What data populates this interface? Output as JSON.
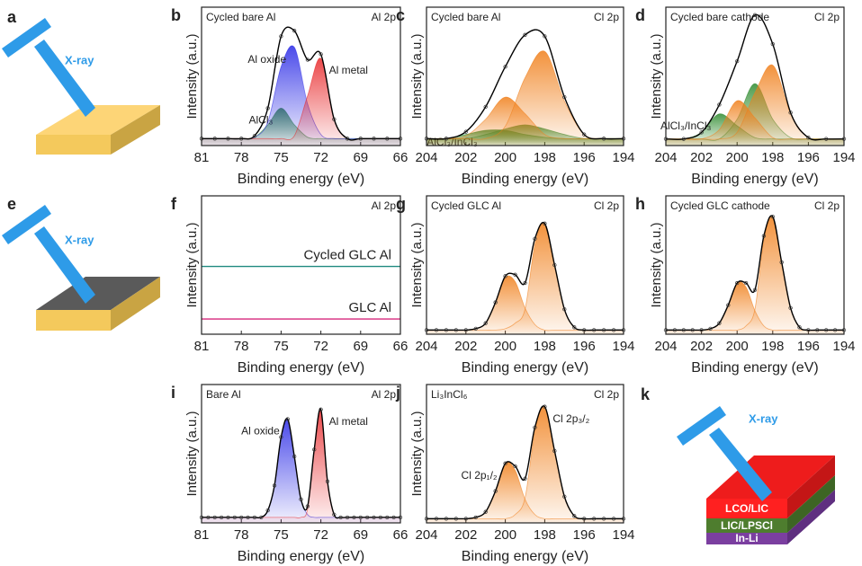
{
  "schematics": [
    {
      "panel": "a",
      "beam_label": "X-ray"
    },
    {
      "panel": "e",
      "beam_label": "X-ray"
    },
    {
      "panel": "k",
      "beam_label": "X-ray",
      "layers": [
        "LCO/LIC",
        "LIC/LPSCl",
        "In-Li"
      ]
    }
  ],
  "chart_data": [
    {
      "type": "line",
      "panel": "b",
      "title": "Cycled bare Al",
      "label": "Al 2p",
      "xlabel": "Binding energy (eV)",
      "ylabel": "Intensity (a.u.)",
      "xlim": [
        81,
        66
      ],
      "xticks": [
        81,
        78,
        75,
        72,
        69,
        66
      ],
      "ylim": [
        0,
        100
      ],
      "x": [
        81,
        80,
        79,
        78,
        77,
        76,
        75,
        74,
        73,
        72,
        71,
        70,
        69,
        68,
        67,
        66
      ],
      "series": [
        {
          "name": "AlCl₃",
          "color": "#2e8b2e",
          "fill": true,
          "values": [
            5,
            5,
            5,
            5,
            6,
            15,
            27,
            15,
            6,
            5,
            5,
            5,
            5,
            5,
            5,
            5
          ]
        },
        {
          "name": "Al oxide",
          "color": "#2a2ae6",
          "fill": true,
          "values": [
            5,
            5,
            5,
            5,
            6,
            17,
            57,
            71,
            30,
            8,
            5,
            5,
            5,
            5,
            5,
            5
          ]
        },
        {
          "name": "Al metal",
          "color": "#e8292b",
          "fill": true,
          "values": [
            5,
            5,
            5,
            5,
            5,
            5,
            5,
            7,
            36,
            63,
            19,
            5,
            5,
            5,
            5,
            5
          ]
        },
        {
          "color": "#000000",
          "fill": false,
          "values": [
            5,
            5,
            5,
            5,
            7,
            27,
            79,
            83,
            62,
            66,
            19,
            5,
            5,
            5,
            5,
            5
          ]
        }
      ]
    },
    {
      "type": "line",
      "panel": "c",
      "title": "Cycled bare Al",
      "label": "Cl 2p",
      "xlabel": "Binding energy (eV)",
      "ylabel": "Intensity (a.u.)",
      "xlim": [
        204,
        194
      ],
      "xticks": [
        204,
        202,
        200,
        198,
        196,
        194
      ],
      "ylim": [
        0,
        100
      ],
      "x": [
        204,
        203,
        202,
        201,
        200,
        199,
        198,
        197,
        196,
        195,
        194
      ],
      "series": [
        {
          "name": "AlCl₃/InCl₃",
          "color": "#2e8b2e",
          "fill": true,
          "values": [
            5,
            5,
            8,
            11,
            11,
            8,
            6,
            5,
            5,
            5,
            5
          ]
        },
        {
          "color": "#2e8b2e",
          "fill": true,
          "values": [
            5,
            5,
            5,
            8,
            12,
            15,
            12,
            8,
            5,
            5,
            5
          ]
        },
        {
          "color": "#f07f1a",
          "fill": true,
          "values": [
            5,
            5,
            7,
            19,
            35,
            23,
            8,
            5,
            5,
            5,
            5
          ]
        },
        {
          "color": "#f07f1a",
          "fill": true,
          "values": [
            5,
            5,
            5,
            5,
            14,
            49,
            68,
            32,
            8,
            5,
            5
          ]
        },
        {
          "color": "#000000",
          "fill": false,
          "values": [
            5,
            5,
            10,
            28,
            57,
            80,
            79,
            35,
            8,
            5,
            5
          ]
        }
      ]
    },
    {
      "type": "line",
      "panel": "d",
      "title": "Cycled bare cathode",
      "label": "Cl 2p",
      "xlabel": "Binding energy (eV)",
      "ylabel": "Intensity (a.u.)",
      "xlim": [
        204,
        194
      ],
      "xticks": [
        204,
        202,
        200,
        198,
        196,
        194
      ],
      "ylim": [
        0,
        105
      ],
      "x": [
        204,
        203,
        202,
        201,
        200,
        199,
        198,
        197,
        196,
        195,
        194
      ],
      "series": [
        {
          "name": "AlCl₃/InCl₃",
          "color": "#2e8b2e",
          "fill": true,
          "values": [
            5,
            5,
            10,
            24,
            15,
            6,
            5,
            5,
            5,
            5,
            5
          ]
        },
        {
          "color": "#2e8b2e",
          "fill": true,
          "values": [
            5,
            5,
            5,
            5,
            20,
            47,
            20,
            6,
            5,
            5,
            5
          ]
        },
        {
          "color": "#f07f1a",
          "fill": true,
          "values": [
            5,
            5,
            5,
            12,
            34,
            21,
            6,
            5,
            5,
            5,
            5
          ]
        },
        {
          "color": "#f07f1a",
          "fill": true,
          "values": [
            5,
            5,
            5,
            5,
            10,
            40,
            61,
            24,
            6,
            5,
            5
          ]
        },
        {
          "color": "#000000",
          "fill": false,
          "values": [
            5,
            5,
            10,
            31,
            64,
            99,
            77,
            25,
            6,
            5,
            5
          ]
        }
      ]
    },
    {
      "type": "line",
      "panel": "f",
      "label": "Al 2p",
      "xlabel": "Binding energy (eV)",
      "ylabel": "Intensity (a.u.)",
      "xlim": [
        81,
        66
      ],
      "xticks": [
        81,
        78,
        75,
        72,
        69,
        66
      ],
      "ylim": [
        0,
        100
      ],
      "x": [
        81,
        78,
        75,
        72,
        69,
        66
      ],
      "series": [
        {
          "name": "Cycled GLC Al",
          "color": "#1f8a80",
          "fill": false,
          "values": [
            49,
            49,
            49,
            49,
            49,
            49
          ]
        },
        {
          "name": "GLC Al",
          "color": "#d6287c",
          "fill": false,
          "values": [
            11,
            11,
            11,
            11,
            11,
            11
          ]
        }
      ]
    },
    {
      "type": "line",
      "panel": "g",
      "title": "Cycled GLC Al",
      "label": "Cl 2p",
      "xlabel": "Binding energy (eV)",
      "ylabel": "Intensity (a.u.)",
      "xlim": [
        204,
        194
      ],
      "xticks": [
        204,
        202,
        200,
        198,
        196,
        194
      ],
      "ylim": [
        0,
        100
      ],
      "x": [
        204,
        203.5,
        203,
        202.5,
        202,
        201.5,
        201,
        200.5,
        200,
        199.5,
        199,
        198.5,
        198,
        197.5,
        197,
        196.5,
        196,
        195.5,
        195,
        194.5,
        194
      ],
      "series": [
        {
          "color": "#f07f1a",
          "fill": true,
          "values": [
            3,
            3,
            3,
            3,
            3,
            4,
            8,
            23,
            41,
            38,
            19,
            7,
            3,
            3,
            3,
            3,
            3,
            3,
            3,
            3,
            3
          ]
        },
        {
          "color": "#f07f1a",
          "fill": true,
          "values": [
            3,
            3,
            3,
            3,
            3,
            3,
            3,
            3,
            4,
            8,
            18,
            65,
            80,
            50,
            18,
            5,
            3,
            3,
            3,
            3,
            3
          ]
        },
        {
          "color": "#000000",
          "fill": false,
          "values": [
            3,
            3,
            3,
            3,
            3,
            4,
            8,
            23,
            42,
            43,
            37,
            69,
            80,
            50,
            18,
            5,
            3,
            3,
            3,
            3,
            3
          ]
        }
      ]
    },
    {
      "type": "line",
      "panel": "h",
      "title": "Cycled GLC cathode",
      "label": "Cl 2p",
      "xlabel": "Binding energy (eV)",
      "ylabel": "Intensity (a.u.)",
      "xlim": [
        204,
        194
      ],
      "xticks": [
        204,
        202,
        200,
        198,
        196,
        194
      ],
      "ylim": [
        0,
        100
      ],
      "x": [
        204,
        203.5,
        203,
        202.5,
        202,
        201.5,
        201,
        200.5,
        200,
        199.5,
        199,
        198.5,
        198,
        197.5,
        197,
        196.5,
        196,
        195.5,
        195,
        194.5,
        194
      ],
      "series": [
        {
          "color": "#f07f1a",
          "fill": true,
          "values": [
            3,
            3,
            3,
            3,
            3,
            4,
            8,
            21,
            37,
            34,
            17,
            6,
            3,
            3,
            3,
            3,
            3,
            3,
            3,
            3,
            3
          ]
        },
        {
          "color": "#f07f1a",
          "fill": true,
          "values": [
            3,
            3,
            3,
            3,
            3,
            3,
            3,
            3,
            3,
            6,
            18,
            68,
            85,
            52,
            19,
            5,
            3,
            3,
            3,
            3,
            3
          ]
        },
        {
          "color": "#000000",
          "fill": false,
          "values": [
            3,
            3,
            3,
            3,
            3,
            4,
            8,
            21,
            37,
            37,
            32,
            71,
            85,
            52,
            19,
            5,
            3,
            3,
            3,
            3,
            3
          ]
        }
      ]
    },
    {
      "type": "line",
      "panel": "i",
      "title": "Bare Al",
      "label": "Al 2p",
      "xlabel": "Binding energy (eV)",
      "ylabel": "Intensity (a.u.)",
      "xlim": [
        81,
        66
      ],
      "xticks": [
        81,
        78,
        75,
        72,
        69,
        66
      ],
      "ylim": [
        0,
        100
      ],
      "x": [
        81,
        80.5,
        80,
        79.5,
        79,
        78.5,
        78,
        77.5,
        77,
        76.5,
        76,
        75.5,
        75,
        74.5,
        74,
        73.5,
        73,
        72.5,
        72,
        71.5,
        71,
        70.5,
        70,
        69.5,
        69,
        68.5,
        68,
        67.5,
        67,
        66.5,
        66
      ],
      "series": [
        {
          "name": "Al oxide",
          "color": "#2a2ae6",
          "fill": true,
          "values": [
            4,
            4,
            4,
            4,
            4,
            4,
            4,
            4,
            4,
            4,
            9,
            27,
            62,
            75,
            48,
            17,
            6,
            4,
            4,
            4,
            4,
            4,
            4,
            4,
            4,
            4,
            4,
            4,
            4,
            4,
            4
          ]
        },
        {
          "name": "Al metal",
          "color": "#e8292b",
          "fill": true,
          "values": [
            4,
            4,
            4,
            4,
            4,
            4,
            4,
            4,
            4,
            4,
            4,
            4,
            4,
            4,
            4,
            4,
            10,
            53,
            82,
            30,
            6,
            4,
            4,
            4,
            4,
            4,
            4,
            4,
            4,
            4,
            4
          ]
        },
        {
          "color": "#000000",
          "fill": false,
          "values": [
            4,
            4,
            4,
            4,
            4,
            4,
            4,
            4,
            4,
            4,
            9,
            27,
            62,
            75,
            48,
            17,
            12,
            53,
            82,
            30,
            6,
            4,
            4,
            4,
            4,
            4,
            4,
            4,
            4,
            4,
            4
          ]
        }
      ]
    },
    {
      "type": "line",
      "panel": "j",
      "title": "Li₃InCl₆",
      "label": "Cl 2p",
      "xlabel": "Binding energy (eV)",
      "ylabel": "Intensity (a.u.)",
      "xlim": [
        204,
        194
      ],
      "xticks": [
        204,
        202,
        200,
        198,
        196,
        194
      ],
      "ylim": [
        0,
        100
      ],
      "series_label_color": "#222222",
      "x": [
        204,
        203.5,
        203,
        202.5,
        202,
        201.5,
        201,
        200.5,
        200,
        199.5,
        199,
        198.5,
        198,
        197.5,
        197,
        196.5,
        196,
        195.5,
        195,
        194.5,
        194
      ],
      "series": [
        {
          "name": "Cl 2p₁/₂",
          "color": "#f07f1a",
          "fill": true,
          "values": [
            3,
            3,
            3,
            3,
            3,
            4,
            8,
            23,
            43,
            38,
            17,
            6,
            3,
            3,
            3,
            3,
            3,
            3,
            3,
            3,
            3
          ]
        },
        {
          "name": "Cl 2p₃/₂",
          "color": "#f07f1a",
          "fill": true,
          "values": [
            3,
            3,
            3,
            3,
            3,
            3,
            3,
            3,
            3,
            6,
            18,
            66,
            84,
            52,
            19,
            5,
            3,
            3,
            3,
            3,
            3
          ]
        },
        {
          "color": "#000000",
          "fill": false,
          "values": [
            3,
            3,
            3,
            3,
            3,
            4,
            8,
            23,
            43,
            41,
            32,
            69,
            84,
            52,
            19,
            5,
            3,
            3,
            3,
            3,
            3
          ]
        }
      ]
    }
  ]
}
